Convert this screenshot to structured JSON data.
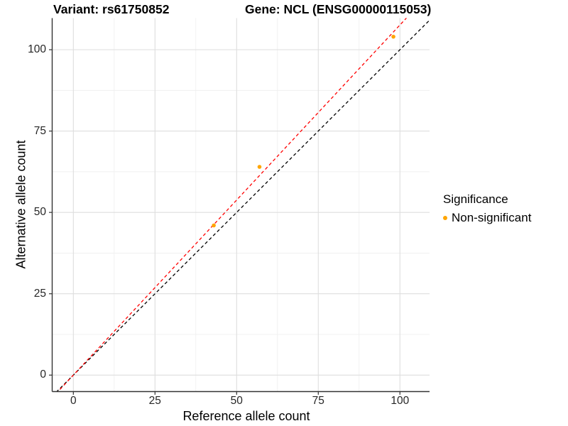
{
  "titles": {
    "variant": "Variant: rs61750852",
    "gene": "Gene: NCL (ENSG00000115053)"
  },
  "axes": {
    "x_label": "Reference allele count",
    "y_label": "Alternative allele count"
  },
  "legend": {
    "title": "Significance",
    "items": [
      {
        "label": "Non-significant",
        "color": "#FFA500"
      }
    ]
  },
  "chart_data": {
    "type": "scatter",
    "title_left": "Variant: rs61750852",
    "title_right": "Gene: NCL (ENSG00000115053)",
    "xlabel": "Reference allele count",
    "ylabel": "Alternative allele count",
    "xlim": [
      -6.48,
      109.07
    ],
    "ylim": [
      -5.06,
      109.71
    ],
    "x_ticks": [
      0,
      25,
      50,
      75,
      100
    ],
    "y_ticks": [
      0,
      25,
      50,
      75,
      100
    ],
    "grid": "major+minor",
    "minor_step": 12.5,
    "legend_position": "right",
    "series": [
      {
        "name": "Non-significant",
        "color": "#FFA500",
        "points": [
          {
            "x": 43,
            "y": 46
          },
          {
            "x": 57,
            "y": 64
          },
          {
            "x": 98,
            "y": 104
          }
        ]
      }
    ],
    "lines": [
      {
        "name": "identity",
        "style": "dashed",
        "color": "#000000",
        "slope": 1.0,
        "intercept": 0
      },
      {
        "name": "fit",
        "style": "dashed",
        "color": "#FF0000",
        "slope": 1.076,
        "intercept": 0
      }
    ],
    "colors": {
      "point": "#FFA500",
      "grid_major": "#DEDEDE",
      "grid_minor": "#EEEEEE",
      "axis_line": "#333333",
      "tick_text": "#262626"
    }
  }
}
